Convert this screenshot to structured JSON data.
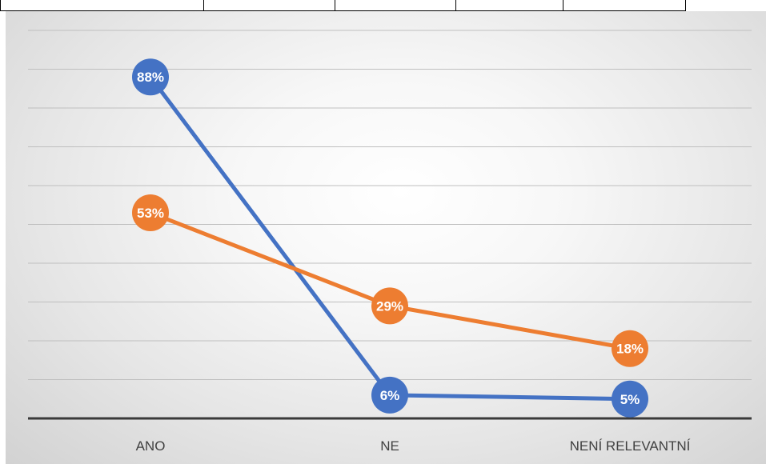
{
  "chart_data": {
    "type": "line",
    "categories": [
      "ANO",
      "NE",
      "NENÍ RELEVANTNÍ"
    ],
    "series": [
      {
        "values": [
          88,
          6,
          5
        ],
        "labels": [
          "88%",
          "6%",
          "5%"
        ],
        "color": "#4472C4"
      },
      {
        "values": [
          53,
          29,
          18
        ],
        "labels": [
          "53%",
          "29%",
          "18%"
        ],
        "color": "#ED7D31"
      }
    ],
    "ylim": [
      0,
      100
    ],
    "grid": true,
    "legend": "none"
  }
}
